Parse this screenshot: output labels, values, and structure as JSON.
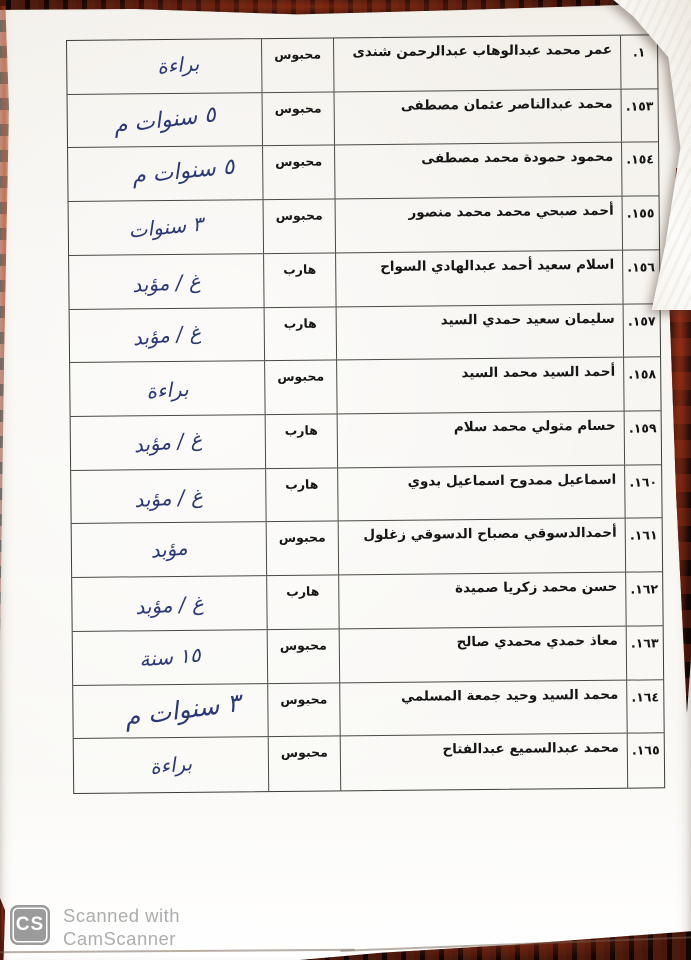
{
  "table": {
    "rows": [
      {
        "no": "١.",
        "name": "عمر محمد عبدالوهاب عبدالرحمن شندى",
        "status": "محبوس",
        "note": "براءة"
      },
      {
        "no": "١٥٣.",
        "name": "محمد عبدالناصر عثمان مصطفى",
        "status": "محبوس",
        "note": "٥ سنوات م"
      },
      {
        "no": "١٥٤.",
        "name": "محمود حمودة محمد مصطفى",
        "status": "محبوس",
        "note": "٥ سنوات م"
      },
      {
        "no": "١٥٥.",
        "name": "أحمد صبحي محمد محمد منصور",
        "status": "محبوس",
        "note": "٣ سنوات"
      },
      {
        "no": "١٥٦.",
        "name": "اسلام سعيد أحمد عبدالهادي السواح",
        "status": "هارب",
        "note": "غ / مؤبد"
      },
      {
        "no": "١٥٧.",
        "name": "سليمان سعيد حمدي السيد",
        "status": "هارب",
        "note": "غ / مؤبد"
      },
      {
        "no": "١٥٨.",
        "name": "أحمد السيد محمد السيد",
        "status": "محبوس",
        "note": "براءة"
      },
      {
        "no": "١٥٩.",
        "name": "حسام متولي محمد سلام",
        "status": "هارب",
        "note": "غ / مؤبد"
      },
      {
        "no": "١٦٠.",
        "name": "اسماعيل ممدوح اسماعيل بدوي",
        "status": "هارب",
        "note": "غ / مؤبد"
      },
      {
        "no": "١٦١.",
        "name": "أحمدالدسوقي مصباح الدسوقي زغلول",
        "status": "محبوس",
        "note": "مؤبد"
      },
      {
        "no": "١٦٢.",
        "name": "حسن محمد زكريا صميدة",
        "status": "هارب",
        "note": "غ / مؤبد"
      },
      {
        "no": "١٦٣.",
        "name": "معاذ حمدي محمدي صالح",
        "status": "محبوس",
        "note": "١٥ سنة"
      },
      {
        "no": "١٦٤.",
        "name": "محمد السيد وحيد جمعة المسلمي",
        "status": "محبوس",
        "note": "٣ سنوات م"
      },
      {
        "no": "١٦٥.",
        "name": "محمد عبدالسميع عبدالفتاح",
        "status": "محبوس",
        "note": "براءة"
      }
    ]
  },
  "watermark": {
    "logo_text": "CS",
    "line1": "Scanned with",
    "line2": "CamScanner"
  },
  "colors": {
    "handwriting_ink": "#2b3878",
    "paper": "#f6f4ef",
    "wood_background": "#230d07",
    "table_line": "#4a4a44",
    "watermark_gray": "#adadad"
  }
}
